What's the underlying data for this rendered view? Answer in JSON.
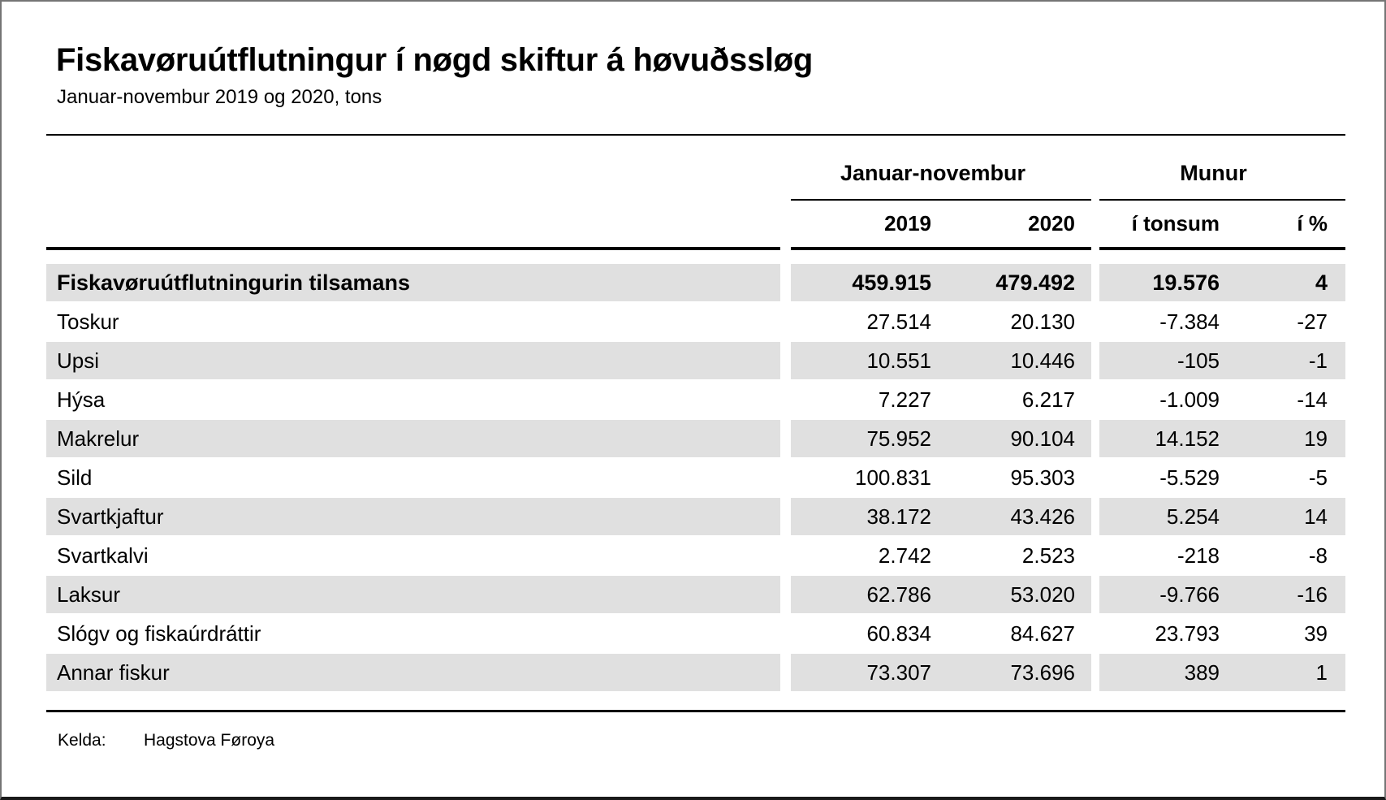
{
  "page": {
    "title": "Fiskavøruútflutningur í nøgd skiftur á høvuðssløg",
    "subtitle": "Januar-novembur 2019 og 2020, tons",
    "source": {
      "label": "Kelda:",
      "value": "Hagstova Føroya"
    }
  },
  "table": {
    "groups": {
      "period": "Januar-novembur",
      "diff": "Munur"
    },
    "columns": {
      "y2019": "2019",
      "y2020": "2020",
      "tons": "í tonsum",
      "pct": "í %"
    },
    "rows": [
      {
        "label": "Fiskavøruútflutningurin tilsamans",
        "y2019": "459.915",
        "y2020": "479.492",
        "tons": "19.576",
        "pct": "4"
      },
      {
        "label": "Toskur",
        "y2019": "27.514",
        "y2020": "20.130",
        "tons": "-7.384",
        "pct": "-27"
      },
      {
        "label": "Upsi",
        "y2019": "10.551",
        "y2020": "10.446",
        "tons": "-105",
        "pct": "-1"
      },
      {
        "label": "Hýsa",
        "y2019": "7.227",
        "y2020": "6.217",
        "tons": "-1.009",
        "pct": "-14"
      },
      {
        "label": "Makrelur",
        "y2019": "75.952",
        "y2020": "90.104",
        "tons": "14.152",
        "pct": "19"
      },
      {
        "label": "Sild",
        "y2019": "100.831",
        "y2020": "95.303",
        "tons": "-5.529",
        "pct": "-5"
      },
      {
        "label": "Svartkjaftur",
        "y2019": "38.172",
        "y2020": "43.426",
        "tons": "5.254",
        "pct": "14"
      },
      {
        "label": "Svartkalvi",
        "y2019": "2.742",
        "y2020": "2.523",
        "tons": "-218",
        "pct": "-8"
      },
      {
        "label": "Laksur",
        "y2019": "62.786",
        "y2020": "53.020",
        "tons": "-9.766",
        "pct": "-16"
      },
      {
        "label": "Slógv og fiskaúrdráttir",
        "y2019": "60.834",
        "y2020": "84.627",
        "tons": "23.793",
        "pct": "39"
      },
      {
        "label": "Annar fiskur",
        "y2019": "73.307",
        "y2020": "73.696",
        "tons": "389",
        "pct": "1"
      }
    ]
  },
  "colors": {
    "row_shading": "#e0e0e0",
    "rule": "#000000"
  }
}
